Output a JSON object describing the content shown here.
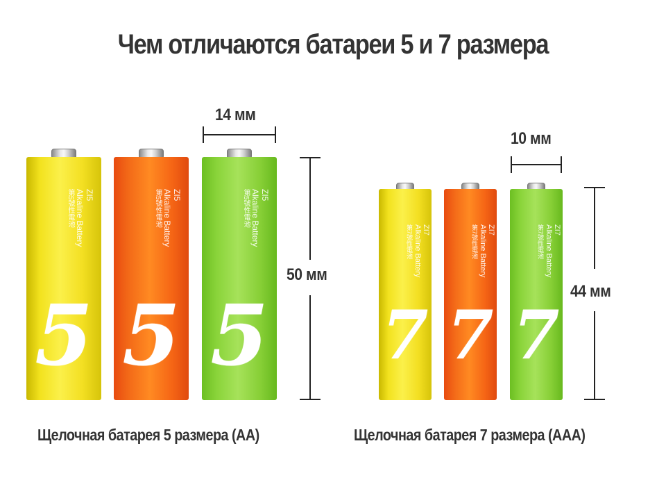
{
  "title": "Чем отличаются батареи 5 и 7 размера",
  "aa": {
    "caption": "Щелочная батарея 5 размера (AA)",
    "width_label": "14 мм",
    "height_label": "50 мм",
    "model": "ZI5",
    "type_text": "Alkaline Battery",
    "cn_text": "第5號性電池",
    "big_number": "5"
  },
  "aaa": {
    "caption": "Щелочная батарея 7 размера (AAA)",
    "width_label": "10 мм",
    "height_label": "44 мм",
    "model": "ZI7",
    "type_text": "Alkaline Battery",
    "cn_text": "第7號性電池",
    "big_number": "7"
  },
  "colors": {
    "yellow": "#f2e21e",
    "orange": "#ff8a22",
    "green": "#a6e25a",
    "text": "#333333"
  }
}
